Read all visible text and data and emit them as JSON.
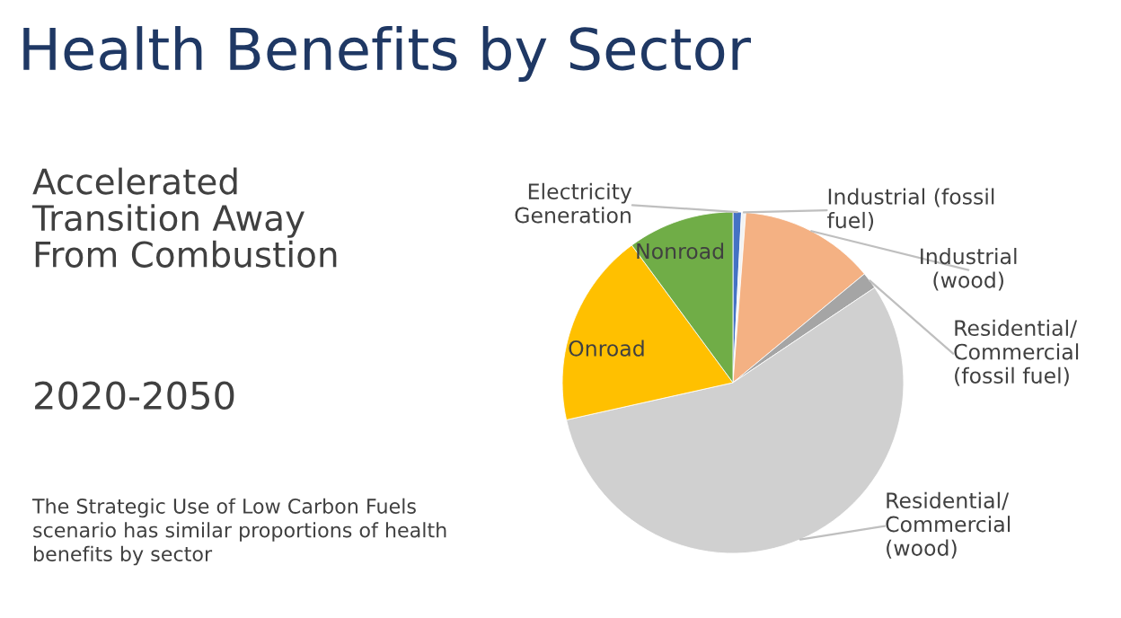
{
  "chart_data": {
    "type": "pie",
    "title": "Health Benefits by Sector",
    "subtitle": "Accelerated\nTransition Away\nFrom Combustion",
    "annotations": [
      "2020-2050",
      "The Strategic Use of Low Carbon Fuels\nscenario has similar proportions of health\nbenefits by sector"
    ],
    "categories": [
      "Electricity\nGeneration",
      "Industrial (fossil\nfuel)",
      "Industrial\n(wood)",
      "Residential/\nCommercial\n(fossil fuel)",
      "Residential/\nCommercial\n(wood)",
      "Onroad",
      "Nonroad"
    ],
    "values": [
      0.8,
      0.4,
      12.8,
      1.6,
      55.9,
      18.4,
      10.1
    ],
    "colors": [
      "#4472c4",
      "#f2f2f2",
      "#f4b183",
      "#a5a5a5",
      "#d0d0d0",
      "#ffc000",
      "#70ad47"
    ],
    "legend": false
  }
}
